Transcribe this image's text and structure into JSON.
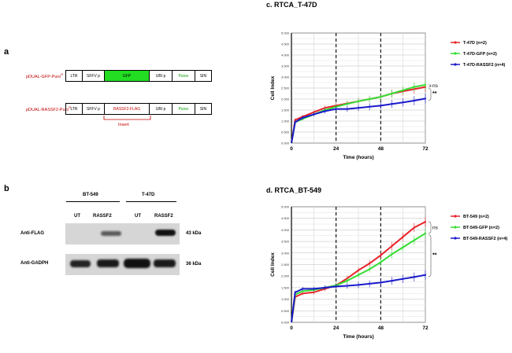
{
  "panel_a": {
    "letter": "a",
    "constructs": [
      {
        "name": "pDUAL-GFP-Puro",
        "sup": "R",
        "segments": [
          {
            "label": "LTR",
            "color": "#ffffff",
            "text_color": "#000000"
          },
          {
            "label": "SFFV p",
            "color": "#ffffff",
            "text_color": "#000000"
          },
          {
            "label": "GFP",
            "color": "#22dd22",
            "text_color": "#000000"
          },
          {
            "label": "UBI p",
            "color": "#ffffff",
            "text_color": "#000000"
          },
          {
            "label": "Puro",
            "sup": "R",
            "color": "#ffffff",
            "text_color": "#009900"
          },
          {
            "label": "SIN",
            "color": "#ffffff",
            "text_color": "#000000"
          }
        ]
      },
      {
        "name": "pDUAL-RASSF2-Puro",
        "sup": "R",
        "segments": [
          {
            "label": "LTR",
            "color": "#ffffff",
            "text_color": "#000000"
          },
          {
            "label": "SFFV p",
            "color": "#ffffff",
            "text_color": "#000000"
          },
          {
            "label": "RASSF2-FLAG",
            "color": "#ffffff",
            "text_color": "#c00000"
          },
          {
            "label": "UBI p",
            "color": "#ffffff",
            "text_color": "#000000"
          },
          {
            "label": "Puro",
            "sup": "R",
            "color": "#ffffff",
            "text_color": "#009900"
          },
          {
            "label": "SIN",
            "color": "#ffffff",
            "text_color": "#000000"
          }
        ]
      }
    ],
    "insert_label": "Insert"
  },
  "panel_b": {
    "letter": "b",
    "cell_lines": [
      "BT-549",
      "T-47D"
    ],
    "lanes": [
      "UT",
      "RASSF2",
      "UT",
      "RASSF2"
    ],
    "blots": [
      {
        "antibody": "Anti-FLAG",
        "size": "43 kDa"
      },
      {
        "antibody": "Anti-GADPH",
        "size": "36 kDa"
      }
    ],
    "flag_band_intensity": [
      0,
      0.55,
      0,
      0.9
    ],
    "gapdh_band_intensity": [
      0.8,
      0.85,
      0.9,
      0.8
    ]
  },
  "chart_data": [
    {
      "type": "line",
      "panel_letter": "c.",
      "title": "RTCA_T-47D",
      "xlabel": "Time (hours)",
      "ylabel": "Cell Index",
      "xlim": [
        0,
        72
      ],
      "ylim": [
        0,
        5
      ],
      "x_ticks": [
        0,
        24,
        48,
        72
      ],
      "y_ticks": [
        "0.000",
        "0.500",
        "1.000",
        "1.500",
        "2.000",
        "2.500",
        "3.000",
        "3.500",
        "4.000",
        "4.500",
        "5.000"
      ],
      "dashed_x": [
        24,
        48
      ],
      "x": [
        0,
        2,
        6,
        12,
        18,
        24,
        30,
        36,
        42,
        48,
        54,
        60,
        66,
        72
      ],
      "series": [
        {
          "name": "T-47D (n=2)",
          "color": "#e8232a",
          "values": [
            0,
            1.05,
            1.2,
            1.4,
            1.6,
            1.7,
            1.8,
            1.9,
            2.0,
            2.1,
            2.25,
            2.35,
            2.45,
            2.55
          ]
        },
        {
          "name": "T-47D-GFP (n=2)",
          "color": "#33dd33",
          "values": [
            0,
            0.95,
            1.1,
            1.3,
            1.5,
            1.65,
            1.78,
            1.9,
            2.0,
            2.1,
            2.25,
            2.4,
            2.55,
            2.65
          ]
        },
        {
          "name": "T-47D-RASSF2 (n=4)",
          "color": "#1a1acc",
          "values": [
            0,
            0.95,
            1.15,
            1.3,
            1.45,
            1.55,
            1.55,
            1.6,
            1.65,
            1.7,
            1.78,
            1.85,
            1.93,
            2.02
          ]
        }
      ],
      "annotations": [
        "ns",
        "**"
      ]
    },
    {
      "type": "line",
      "panel_letter": "d.",
      "title": "RTCA_BT-549",
      "xlabel": "Time (hours)",
      "ylabel": "Cell Index",
      "xlim": [
        0,
        72
      ],
      "ylim": [
        0,
        5
      ],
      "x_ticks": [
        0,
        24,
        48,
        72
      ],
      "y_ticks": [
        "0.000",
        "0.500",
        "1.000",
        "1.500",
        "2.000",
        "2.500",
        "3.000",
        "3.500",
        "4.000",
        "4.500",
        "5.000"
      ],
      "dashed_x": [
        24,
        48
      ],
      "x": [
        0,
        2,
        6,
        12,
        18,
        24,
        30,
        36,
        42,
        48,
        54,
        60,
        66,
        72
      ],
      "series": [
        {
          "name": "BT-549 (n=2)",
          "color": "#e8232a",
          "values": [
            0,
            1.1,
            1.25,
            1.3,
            1.45,
            1.6,
            1.9,
            2.25,
            2.55,
            2.9,
            3.3,
            3.7,
            4.1,
            4.35
          ]
        },
        {
          "name": "BT-549-GFP (n=2)",
          "color": "#33dd33",
          "values": [
            0,
            1.2,
            1.35,
            1.4,
            1.5,
            1.6,
            1.8,
            2.05,
            2.3,
            2.6,
            2.95,
            3.25,
            3.55,
            3.85
          ]
        },
        {
          "name": "BT-549-RASSF2 (n=4)",
          "color": "#1a1acc",
          "values": [
            0,
            1.3,
            1.45,
            1.45,
            1.5,
            1.55,
            1.58,
            1.62,
            1.67,
            1.72,
            1.8,
            1.88,
            1.96,
            2.05
          ]
        }
      ],
      "annotations": [
        "ns",
        "**"
      ]
    }
  ]
}
